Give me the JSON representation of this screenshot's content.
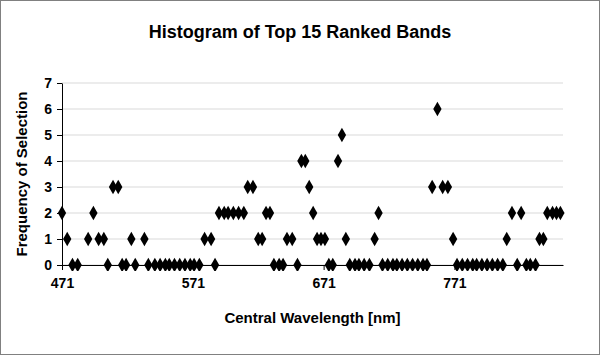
{
  "chart_data": {
    "type": "scatter",
    "title": "Histogram of Top 15 Ranked Bands",
    "x_label": "Central Wavelength [nm]",
    "y_label": "Frequency of Selection",
    "x": [
      471,
      475,
      479,
      483,
      491,
      495,
      499,
      503,
      506,
      510,
      514,
      517,
      520,
      524,
      527,
      534,
      537,
      542,
      546,
      550,
      553,
      557,
      561,
      565,
      569,
      572,
      576,
      580,
      585,
      588,
      591,
      595,
      598,
      602,
      606,
      610,
      613,
      617,
      621,
      624,
      627,
      630,
      633,
      637,
      640,
      643,
      647,
      651,
      654,
      657,
      660,
      663,
      666,
      669,
      672,
      675,
      678,
      682,
      685,
      688,
      691,
      695,
      698,
      702,
      706,
      710,
      713,
      716,
      720,
      724,
      727,
      731,
      735,
      739,
      743,
      747,
      750,
      754,
      758,
      762,
      766,
      770,
      773,
      777,
      781,
      785,
      788,
      792,
      796,
      800,
      804,
      808,
      811,
      815,
      819,
      822,
      826,
      829,
      833,
      836,
      839,
      842,
      846,
      849,
      852
    ],
    "values": [
      2,
      1,
      0,
      0,
      1,
      2,
      1,
      1,
      0,
      3,
      3,
      0,
      0,
      1,
      0,
      1,
      0,
      0,
      0,
      0,
      0,
      0,
      0,
      0,
      0,
      0,
      0,
      1,
      1,
      0,
      2,
      2,
      2,
      2,
      2,
      2,
      3,
      3,
      1,
      1,
      2,
      2,
      0,
      0,
      0,
      1,
      1,
      0,
      4,
      4,
      3,
      2,
      1,
      1,
      1,
      0,
      0,
      4,
      5,
      1,
      0,
      0,
      0,
      0,
      0,
      1,
      2,
      0,
      0,
      0,
      0,
      0,
      0,
      0,
      0,
      0,
      0,
      3,
      6,
      3,
      3,
      1,
      0,
      0,
      0,
      0,
      0,
      0,
      0,
      0,
      0,
      0,
      1,
      2,
      0,
      2,
      0,
      0,
      0,
      1,
      1,
      2,
      2,
      2,
      2
    ],
    "color": "#000000",
    "marker": "diamond",
    "xlim": [
      471,
      854
    ],
    "xticks": [
      471,
      571,
      671,
      771
    ],
    "ylim": [
      0,
      7
    ],
    "yticks": [
      0,
      1,
      2,
      3,
      4,
      5,
      6,
      7
    ],
    "grid": true
  }
}
